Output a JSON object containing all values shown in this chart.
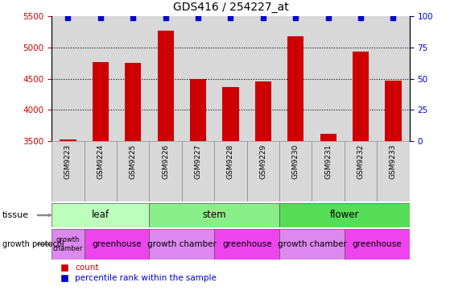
{
  "title": "GDS416 / 254227_at",
  "samples": [
    "GSM9223",
    "GSM9224",
    "GSM9225",
    "GSM9226",
    "GSM9227",
    "GSM9228",
    "GSM9229",
    "GSM9230",
    "GSM9231",
    "GSM9232",
    "GSM9233"
  ],
  "counts": [
    3530,
    4760,
    4750,
    5270,
    4500,
    4370,
    4460,
    5180,
    3620,
    4930,
    4470
  ],
  "percentiles": [
    99,
    99,
    99,
    99,
    99,
    99,
    99,
    99,
    99,
    99,
    99
  ],
  "bar_color": "#cc0000",
  "dot_color": "#0000cc",
  "ylim_left": [
    3500,
    5500
  ],
  "ylim_right": [
    0,
    100
  ],
  "yticks_left": [
    3500,
    4000,
    4500,
    5000,
    5500
  ],
  "yticks_right": [
    0,
    25,
    50,
    75,
    100
  ],
  "grid_lines": [
    4000,
    4500,
    5000
  ],
  "col_bg_color": "#d8d8d8",
  "tissue_groups": [
    {
      "label": "leaf",
      "start": 0,
      "end": 3,
      "color": "#bbffbb"
    },
    {
      "label": "stem",
      "start": 3,
      "end": 7,
      "color": "#88ee88"
    },
    {
      "label": "flower",
      "start": 7,
      "end": 11,
      "color": "#55dd55"
    }
  ],
  "protocol_groups": [
    {
      "label": "growth\nchamber",
      "start": 0,
      "end": 1,
      "color": "#dd88ee"
    },
    {
      "label": "greenhouse",
      "start": 1,
      "end": 3,
      "color": "#ee44ee"
    },
    {
      "label": "growth chamber",
      "start": 3,
      "end": 5,
      "color": "#dd88ee"
    },
    {
      "label": "greenhouse",
      "start": 5,
      "end": 7,
      "color": "#ee44ee"
    },
    {
      "label": "growth chamber",
      "start": 7,
      "end": 9,
      "color": "#dd88ee"
    },
    {
      "label": "greenhouse",
      "start": 9,
      "end": 11,
      "color": "#ee44ee"
    }
  ],
  "tissue_label": "tissue",
  "protocol_label": "growth protocol",
  "legend_count_label": "count",
  "legend_pct_label": "percentile rank within the sample",
  "background_color": "#ffffff",
  "tick_label_color_left": "#cc0000",
  "tick_label_color_right": "#0000cc",
  "bar_width": 0.5,
  "figsize": [
    5.59,
    3.66
  ],
  "dpi": 100
}
